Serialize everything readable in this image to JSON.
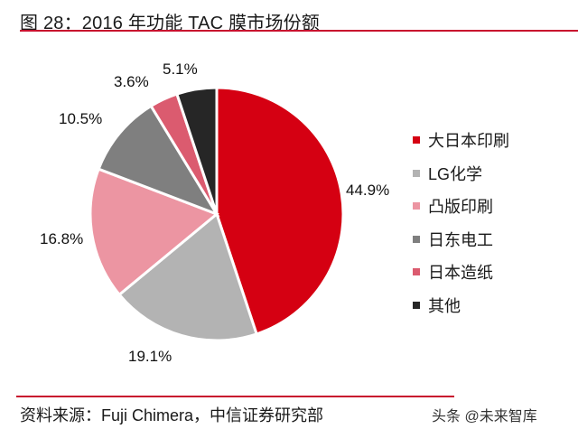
{
  "header": {
    "title": "图 28：2016 年功能 TAC 膜市场份额"
  },
  "footer": {
    "source": "资料来源：Fuji Chimera，中信证券研究部",
    "watermark": "头条 @未来智库"
  },
  "chart_data": {
    "type": "pie",
    "title": "图 28：2016 年功能 TAC 膜市场份额",
    "start_angle_deg": 0,
    "direction": "clockwise",
    "legend_position": "right",
    "slices": [
      {
        "name": "大日本印刷",
        "value": 44.9,
        "label": "44.9%",
        "color": "#d50012"
      },
      {
        "name": "LG化学",
        "value": 19.1,
        "label": "19.1%",
        "color": "#b3b3b3"
      },
      {
        "name": "凸版印刷",
        "value": 16.8,
        "label": "16.8%",
        "color": "#ec95a2"
      },
      {
        "name": "日东电工",
        "value": 10.5,
        "label": "10.5%",
        "color": "#7f7f7f"
      },
      {
        "name": "日本造纸",
        "value": 3.6,
        "label": "3.6%",
        "color": "#db5b6f"
      },
      {
        "name": "其他",
        "value": 5.1,
        "label": "5.1%",
        "color": "#262626"
      }
    ]
  }
}
